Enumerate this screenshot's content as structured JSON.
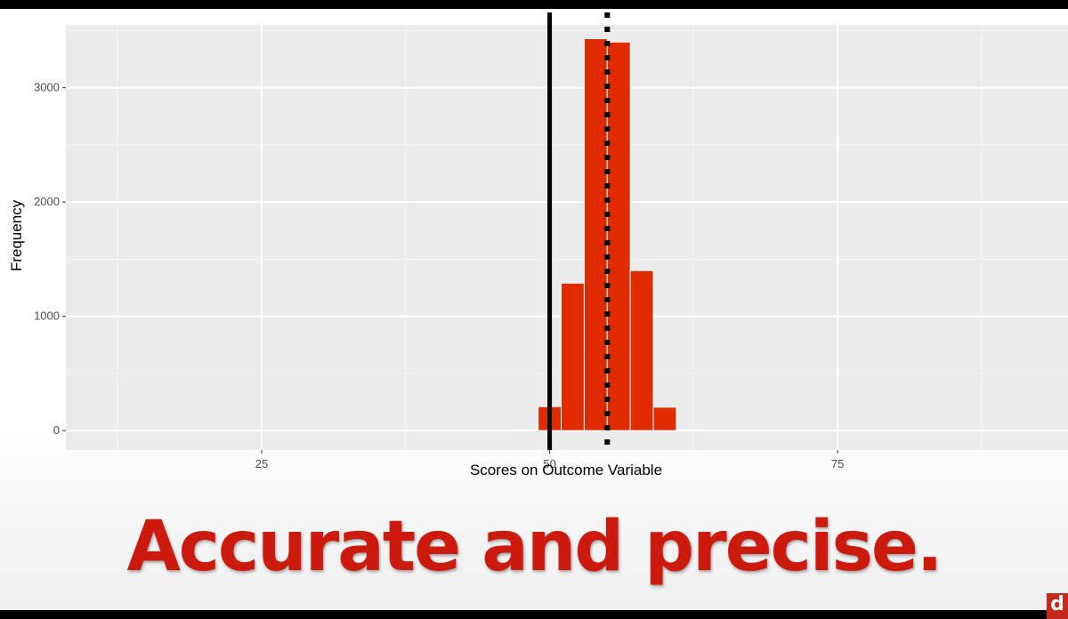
{
  "chart_data": {
    "type": "bar",
    "title": "",
    "xlabel": "Scores on Outcome Variable",
    "ylabel": "Frequency",
    "xlim": [
      8,
      95
    ],
    "ylim": [
      -170,
      3550
    ],
    "x_ticks": [
      25,
      50,
      75
    ],
    "y_ticks": [
      0,
      1000,
      2000,
      3000
    ],
    "grid": true,
    "bin_width": 2,
    "bins": [
      {
        "x": 48,
        "count": 8
      },
      {
        "x": 50,
        "count": 210
      },
      {
        "x": 52,
        "count": 1290
      },
      {
        "x": 54,
        "count": 3430
      },
      {
        "x": 56,
        "count": 3400
      },
      {
        "x": 58,
        "count": 1400
      },
      {
        "x": 60,
        "count": 205
      },
      {
        "x": 62,
        "count": 8
      }
    ],
    "bar_color": "#e02a00",
    "reference_lines": [
      {
        "style": "solid",
        "x": 50
      },
      {
        "style": "dotted",
        "x": 55
      }
    ]
  },
  "caption": "Accurate and precise.",
  "logo_text": "d"
}
